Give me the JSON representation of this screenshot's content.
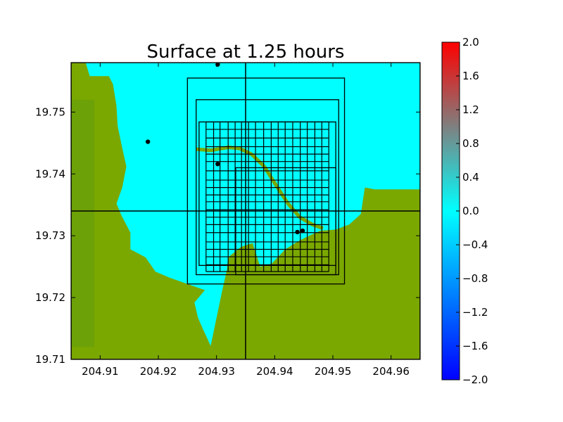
{
  "chart_data": {
    "type": "heatmap",
    "title": "Surface at 1.25 hours",
    "xlabel": "",
    "ylabel": "",
    "xlim": [
      204.905,
      204.965
    ],
    "ylim": [
      19.71,
      19.758
    ],
    "x_ticks": [
      {
        "value": 204.91,
        "label": "204.91"
      },
      {
        "value": 204.92,
        "label": "204.92"
      },
      {
        "value": 204.93,
        "label": "204.93"
      },
      {
        "value": 204.94,
        "label": "204.94"
      },
      {
        "value": 204.95,
        "label": "204.95"
      },
      {
        "value": 204.96,
        "label": "204.96"
      }
    ],
    "y_ticks": [
      {
        "value": 19.71,
        "label": "19.71"
      },
      {
        "value": 19.72,
        "label": "19.72"
      },
      {
        "value": 19.73,
        "label": "19.73"
      },
      {
        "value": 19.74,
        "label": "19.74"
      },
      {
        "value": 19.75,
        "label": "19.75"
      }
    ],
    "colorbar": {
      "range": [
        -2.0,
        2.0
      ],
      "colors": [
        "#0000ff",
        "#00ffff",
        "#ff0000"
      ],
      "ticks": [
        {
          "value": 2.0,
          "label": "2.0"
        },
        {
          "value": 1.6,
          "label": "1.6"
        },
        {
          "value": 1.2,
          "label": "1.2"
        },
        {
          "value": 0.8,
          "label": "0.8"
        },
        {
          "value": 0.4,
          "label": "0.4"
        },
        {
          "value": 0.0,
          "label": "0.0"
        },
        {
          "value": -0.4,
          "label": "−0.4"
        },
        {
          "value": -0.8,
          "label": "−0.8"
        },
        {
          "value": -1.2,
          "label": "−1.2"
        },
        {
          "value": -1.6,
          "label": "−1.6"
        },
        {
          "value": -2.0,
          "label": "−2.0"
        }
      ]
    },
    "colors": {
      "water": "#00ffff",
      "land": "#7aa800",
      "land_dark": "#5a9a10",
      "grid": "#000000"
    },
    "gauges": [
      {
        "x": 204.9302,
        "y": 19.7577
      },
      {
        "x": 204.9182,
        "y": 19.7452
      },
      {
        "x": 204.9302,
        "y": 19.7416
      },
      {
        "x": 204.9439,
        "y": 19.7306
      },
      {
        "x": 204.9448,
        "y": 19.7308
      }
    ],
    "amr_patches": [
      {
        "x": [
          204.905,
          204.965
        ],
        "y": [
          19.71,
          19.758
        ]
      },
      {
        "x": [
          204.905,
          204.935
        ],
        "y": [
          19.734,
          19.758
        ]
      },
      {
        "x": [
          204.935,
          204.965
        ],
        "y": [
          19.734,
          19.758
        ]
      },
      {
        "x": [
          204.905,
          204.935
        ],
        "y": [
          19.71,
          19.734
        ]
      },
      {
        "x": [
          204.935,
          204.965
        ],
        "y": [
          19.71,
          19.734
        ]
      },
      {
        "x": [
          204.925,
          204.952
        ],
        "y": [
          19.7222,
          19.7555
        ]
      },
      {
        "x": [
          204.9265,
          204.951
        ],
        "y": [
          19.7237,
          19.752
        ]
      },
      {
        "x": [
          204.927,
          204.9505
        ],
        "y": [
          19.7252,
          19.7484
        ]
      },
      {
        "x": [
          204.9333,
          204.9505
        ],
        "y": [
          19.7237,
          19.741
        ]
      }
    ],
    "fine_grid_x": [
      204.9282,
      204.9295,
      204.9306,
      204.932,
      204.9332,
      204.9343,
      204.9355,
      204.9367,
      204.9381,
      204.9394,
      204.9406,
      204.9418,
      204.9431,
      204.9444,
      204.9456,
      204.9469,
      204.9481,
      204.9493
    ],
    "fine_grid_y": [
      19.7484,
      19.7472,
      19.7458,
      19.7444,
      19.7432,
      19.742,
      19.7405,
      19.739,
      19.7378,
      19.7366,
      19.7355,
      19.7342,
      19.733,
      19.7318,
      19.7305,
      19.729,
      19.7278,
      19.7266,
      19.7253,
      19.7242
    ],
    "channel": [
      [
        204.9265,
        19.744
      ],
      [
        204.929,
        19.7438
      ],
      [
        204.932,
        19.7443
      ],
      [
        204.934,
        19.7441
      ],
      [
        204.936,
        19.7432
      ],
      [
        204.9382,
        19.7412
      ],
      [
        204.9402,
        19.7382
      ],
      [
        204.9423,
        19.7352
      ],
      [
        204.9443,
        19.733
      ],
      [
        204.9465,
        19.7318
      ],
      [
        204.9483,
        19.7312
      ]
    ],
    "land_polygons": [
      [
        [
          204.905,
          19.758
        ],
        [
          204.9075,
          19.758
        ],
        [
          204.9082,
          19.7558
        ],
        [
          204.9115,
          19.7558
        ],
        [
          204.9122,
          19.7545
        ],
        [
          204.9128,
          19.751
        ],
        [
          204.913,
          19.7478
        ],
        [
          204.9137,
          19.7446
        ],
        [
          204.9145,
          19.7412
        ],
        [
          204.9138,
          19.7378
        ],
        [
          204.9128,
          19.7352
        ],
        [
          204.9137,
          19.7332
        ],
        [
          204.9152,
          19.7305
        ],
        [
          204.9152,
          19.7278
        ],
        [
          204.9178,
          19.7265
        ],
        [
          204.9195,
          19.7242
        ],
        [
          204.922,
          19.7232
        ],
        [
          204.925,
          19.7222
        ],
        [
          204.928,
          19.7212
        ],
        [
          204.9262,
          19.7192
        ],
        [
          204.9268,
          19.7168
        ],
        [
          204.9277,
          19.7148
        ],
        [
          204.929,
          19.7122
        ],
        [
          204.931,
          19.7212
        ],
        [
          204.9318,
          19.7245
        ],
        [
          204.932,
          19.7265
        ],
        [
          204.9342,
          19.7282
        ],
        [
          204.9362,
          19.7288
        ],
        [
          204.9375,
          19.725
        ],
        [
          204.9395,
          19.7255
        ],
        [
          204.9418,
          19.7278
        ],
        [
          204.9442,
          19.7292
        ],
        [
          204.9455,
          19.7298
        ],
        [
          204.9478,
          19.7308
        ],
        [
          204.9505,
          19.731
        ],
        [
          204.9528,
          19.7318
        ],
        [
          204.9548,
          19.7335
        ],
        [
          204.9555,
          19.7378
        ],
        [
          204.9572,
          19.7375
        ],
        [
          204.965,
          19.7375
        ],
        [
          204.965,
          19.71
        ],
        [
          204.905,
          19.71
        ]
      ]
    ]
  }
}
